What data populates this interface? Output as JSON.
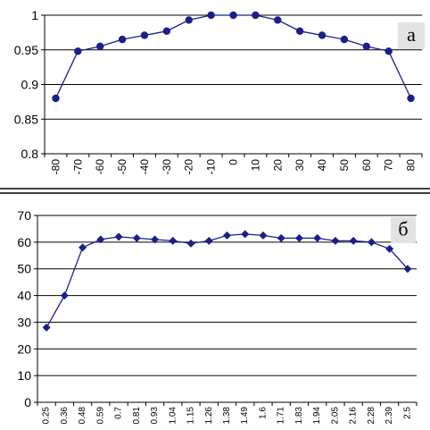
{
  "colors": {
    "series": "#1a1f8a",
    "grid": "#000000",
    "plot_background": "#ffffff",
    "letter_box": "#e3e3e3"
  },
  "chart_data": [
    {
      "type": "line",
      "panel_label": "а",
      "x": [
        "-80",
        "-70",
        "-60",
        "-50",
        "-40",
        "-30",
        "-20",
        "-10",
        "0",
        "10",
        "20",
        "30",
        "40",
        "50",
        "60",
        "70",
        "80"
      ],
      "series": [
        {
          "values": [
            0.88,
            0.948,
            0.955,
            0.965,
            0.971,
            0.977,
            0.993,
            1.0,
            1.0,
            1.0,
            0.993,
            0.977,
            0.971,
            0.965,
            0.955,
            0.948,
            0.88
          ]
        }
      ],
      "marker": "circle",
      "ylim": [
        0.8,
        1.0
      ],
      "yticks": [
        "1",
        "0.95",
        "0.9",
        "0.85",
        "0.8"
      ],
      "grid": true
    },
    {
      "type": "line",
      "panel_label": "б",
      "x": [
        "0.25",
        "0.36",
        "0.48",
        "0.59",
        "0.7",
        "0.81",
        "0.93",
        "1.04",
        "1.15",
        "1.26",
        "1.38",
        "1.49",
        "1.6",
        "1.71",
        "1.83",
        "1.94",
        "2.05",
        "2.16",
        "2.28",
        "2.39",
        "2.5"
      ],
      "series": [
        {
          "values": [
            28,
            40,
            58,
            61,
            62,
            61.5,
            61,
            60.5,
            59.5,
            60.5,
            62.5,
            63,
            62.5,
            61.5,
            61.5,
            61.5,
            60.5,
            60.5,
            60,
            57.5,
            50
          ]
        }
      ],
      "marker": "diamond",
      "ylim": [
        0,
        70
      ],
      "yticks": [
        "70",
        "60",
        "50",
        "40",
        "30",
        "20",
        "10",
        "0"
      ],
      "grid": true
    }
  ]
}
